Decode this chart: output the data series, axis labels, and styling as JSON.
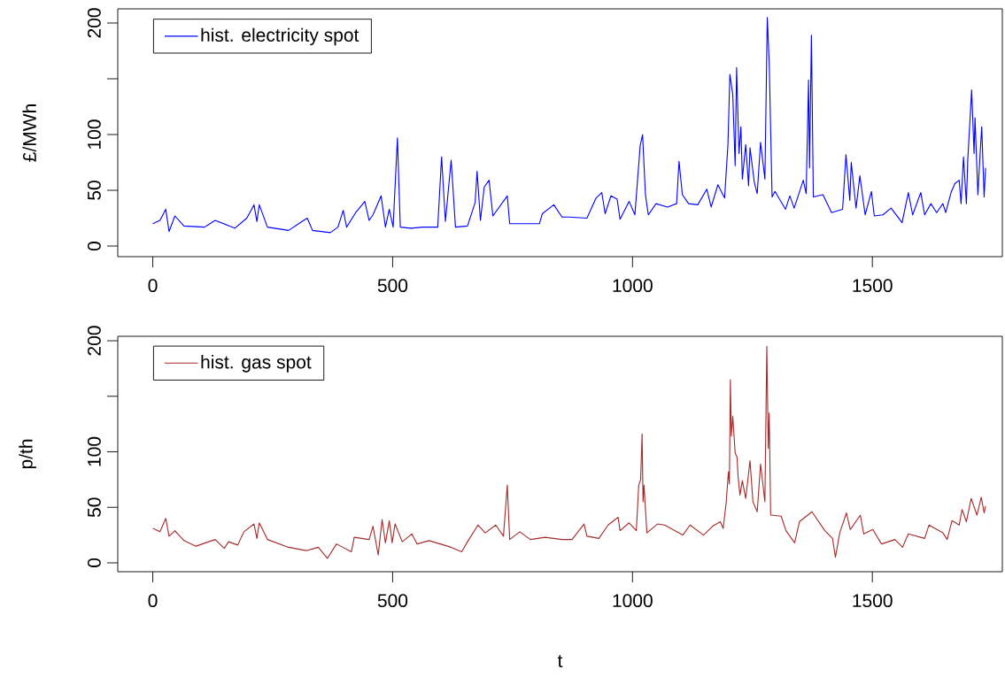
{
  "chart_data": [
    {
      "type": "line",
      "ylabel": "£/MWh",
      "legend": "top left",
      "xlim": [
        -73,
        1771
      ],
      "ylim": [
        -9.5,
        212.7
      ],
      "xticks": [
        0,
        500,
        1000,
        1500
      ],
      "yticks": [
        0,
        50,
        100,
        {
          "value": 150,
          "label": null
        },
        200
      ],
      "series": [
        {
          "name": "hist. electricity spot",
          "color": "#0000ff",
          "x": [
            0,
            15,
            27,
            34,
            46,
            65,
            108,
            130,
            171,
            196,
            211,
            217,
            222,
            239,
            283,
            311,
            322,
            333,
            370,
            386,
            397,
            404,
            423,
            442,
            451,
            459,
            476,
            485,
            493,
            501,
            510,
            516,
            538,
            563,
            594,
            602,
            610,
            622,
            631,
            656,
            672,
            676,
            683,
            691,
            701,
            709,
            739,
            744,
            806,
            812,
            836,
            853,
            868,
            905,
            924,
            936,
            943,
            955,
            968,
            974,
            993,
            1005,
            1016,
            1021,
            1027,
            1033,
            1049,
            1073,
            1092,
            1097,
            1104,
            1117,
            1136,
            1155,
            1164,
            1178,
            1192,
            1199,
            1203,
            1209,
            1214,
            1217,
            1222,
            1226,
            1229,
            1236,
            1242,
            1245,
            1254,
            1260,
            1267,
            1276,
            1281,
            1285,
            1291,
            1297,
            1319,
            1328,
            1337,
            1356,
            1362,
            1367,
            1369,
            1373,
            1377,
            1397,
            1415,
            1438,
            1445,
            1453,
            1456,
            1466,
            1474,
            1485,
            1498,
            1504,
            1522,
            1539,
            1562,
            1575,
            1584,
            1601,
            1609,
            1622,
            1634,
            1647,
            1653,
            1664,
            1672,
            1681,
            1685,
            1690,
            1696,
            1699,
            1707,
            1712,
            1714,
            1720,
            1724,
            1728,
            1733,
            1736
          ],
          "values": [
            20,
            23,
            33,
            13,
            27,
            18,
            17,
            23,
            16,
            25,
            37,
            22,
            37,
            17,
            14,
            22,
            25,
            14,
            12,
            17,
            32,
            17,
            30,
            40,
            23,
            28,
            45,
            17,
            33,
            17,
            97,
            17,
            16,
            17,
            17,
            80,
            22,
            77,
            17,
            18,
            39,
            67,
            23,
            53,
            59,
            27,
            45,
            20,
            20,
            29,
            37,
            26,
            26,
            25,
            43,
            48,
            29,
            45,
            42,
            24,
            40,
            28,
            90,
            100,
            46,
            28,
            38,
            35,
            38,
            76,
            46,
            38,
            37,
            51,
            35,
            55,
            43,
            91,
            154,
            136,
            72,
            160,
            83,
            107,
            60,
            91,
            54,
            88,
            57,
            47,
            93,
            60,
            205,
            165,
            44,
            49,
            33,
            45,
            34,
            59,
            47,
            149,
            70,
            189,
            44,
            46,
            30,
            33,
            82,
            41,
            75,
            34,
            63,
            28,
            49,
            27,
            28,
            34,
            21,
            48,
            28,
            48,
            28,
            38,
            30,
            38,
            30,
            48,
            56,
            59,
            38,
            80,
            38,
            78,
            140,
            83,
            115,
            46,
            78,
            107,
            44,
            70
          ]
        }
      ]
    },
    {
      "type": "line",
      "ylabel": "p/th",
      "xlabel": "t",
      "legend": "top left",
      "xlim": [
        -73,
        1771
      ],
      "ylim": [
        -8,
        204
      ],
      "xticks": [
        0,
        500,
        1000,
        1500
      ],
      "yticks": [
        0,
        50,
        100,
        {
          "value": 150,
          "label": null
        },
        200
      ],
      "series": [
        {
          "name": "hist. gas spot",
          "color": "#a52a2a",
          "x": [
            0,
            15,
            27,
            34,
            46,
            65,
            90,
            130,
            149,
            158,
            177,
            190,
            211,
            217,
            222,
            239,
            283,
            320,
            345,
            364,
            383,
            414,
            420,
            451,
            459,
            470,
            478,
            485,
            493,
            499,
            505,
            520,
            540,
            551,
            576,
            622,
            644,
            656,
            678,
            693,
            715,
            731,
            739,
            744,
            765,
            787,
            818,
            853,
            874,
            899,
            905,
            930,
            949,
            970,
            974,
            993,
            1008,
            1013,
            1017,
            1020,
            1022,
            1024,
            1030,
            1052,
            1067,
            1105,
            1120,
            1148,
            1167,
            1183,
            1189,
            1195,
            1200,
            1202,
            1204,
            1206,
            1209,
            1214,
            1218,
            1220,
            1224,
            1229,
            1236,
            1245,
            1251,
            1260,
            1267,
            1276,
            1280,
            1283,
            1285,
            1288,
            1310,
            1320,
            1338,
            1348,
            1374,
            1401,
            1417,
            1423,
            1432,
            1446,
            1454,
            1475,
            1482,
            1501,
            1519,
            1547,
            1563,
            1575,
            1609,
            1618,
            1647,
            1656,
            1666,
            1681,
            1687,
            1696,
            1706,
            1718,
            1727,
            1733,
            1736
          ],
          "values": [
            31,
            28,
            40,
            24,
            29,
            20,
            15,
            21,
            13,
            19,
            16,
            28,
            35,
            22,
            36,
            21,
            14,
            11,
            14,
            4,
            17,
            10,
            23,
            21,
            33,
            7,
            39,
            18,
            38,
            18,
            35,
            19,
            26,
            17,
            20,
            14,
            10,
            19,
            34,
            27,
            34,
            24,
            70,
            21,
            28,
            21,
            23,
            21,
            21,
            35,
            24,
            22,
            34,
            41,
            29,
            36,
            29,
            70,
            75,
            116,
            55,
            70,
            27,
            35,
            34,
            25,
            34,
            25,
            33,
            37,
            31,
            53,
            82,
            71,
            165,
            114,
            132,
            99,
            95,
            78,
            61,
            74,
            58,
            92,
            55,
            46,
            89,
            55,
            195,
            103,
            135,
            43,
            42,
            29,
            18,
            37,
            46,
            29,
            22,
            5,
            27,
            45,
            30,
            43,
            26,
            30,
            17,
            21,
            14,
            26,
            22,
            34,
            27,
            21,
            38,
            34,
            48,
            37,
            58,
            43,
            59,
            45,
            51
          ]
        }
      ]
    }
  ]
}
